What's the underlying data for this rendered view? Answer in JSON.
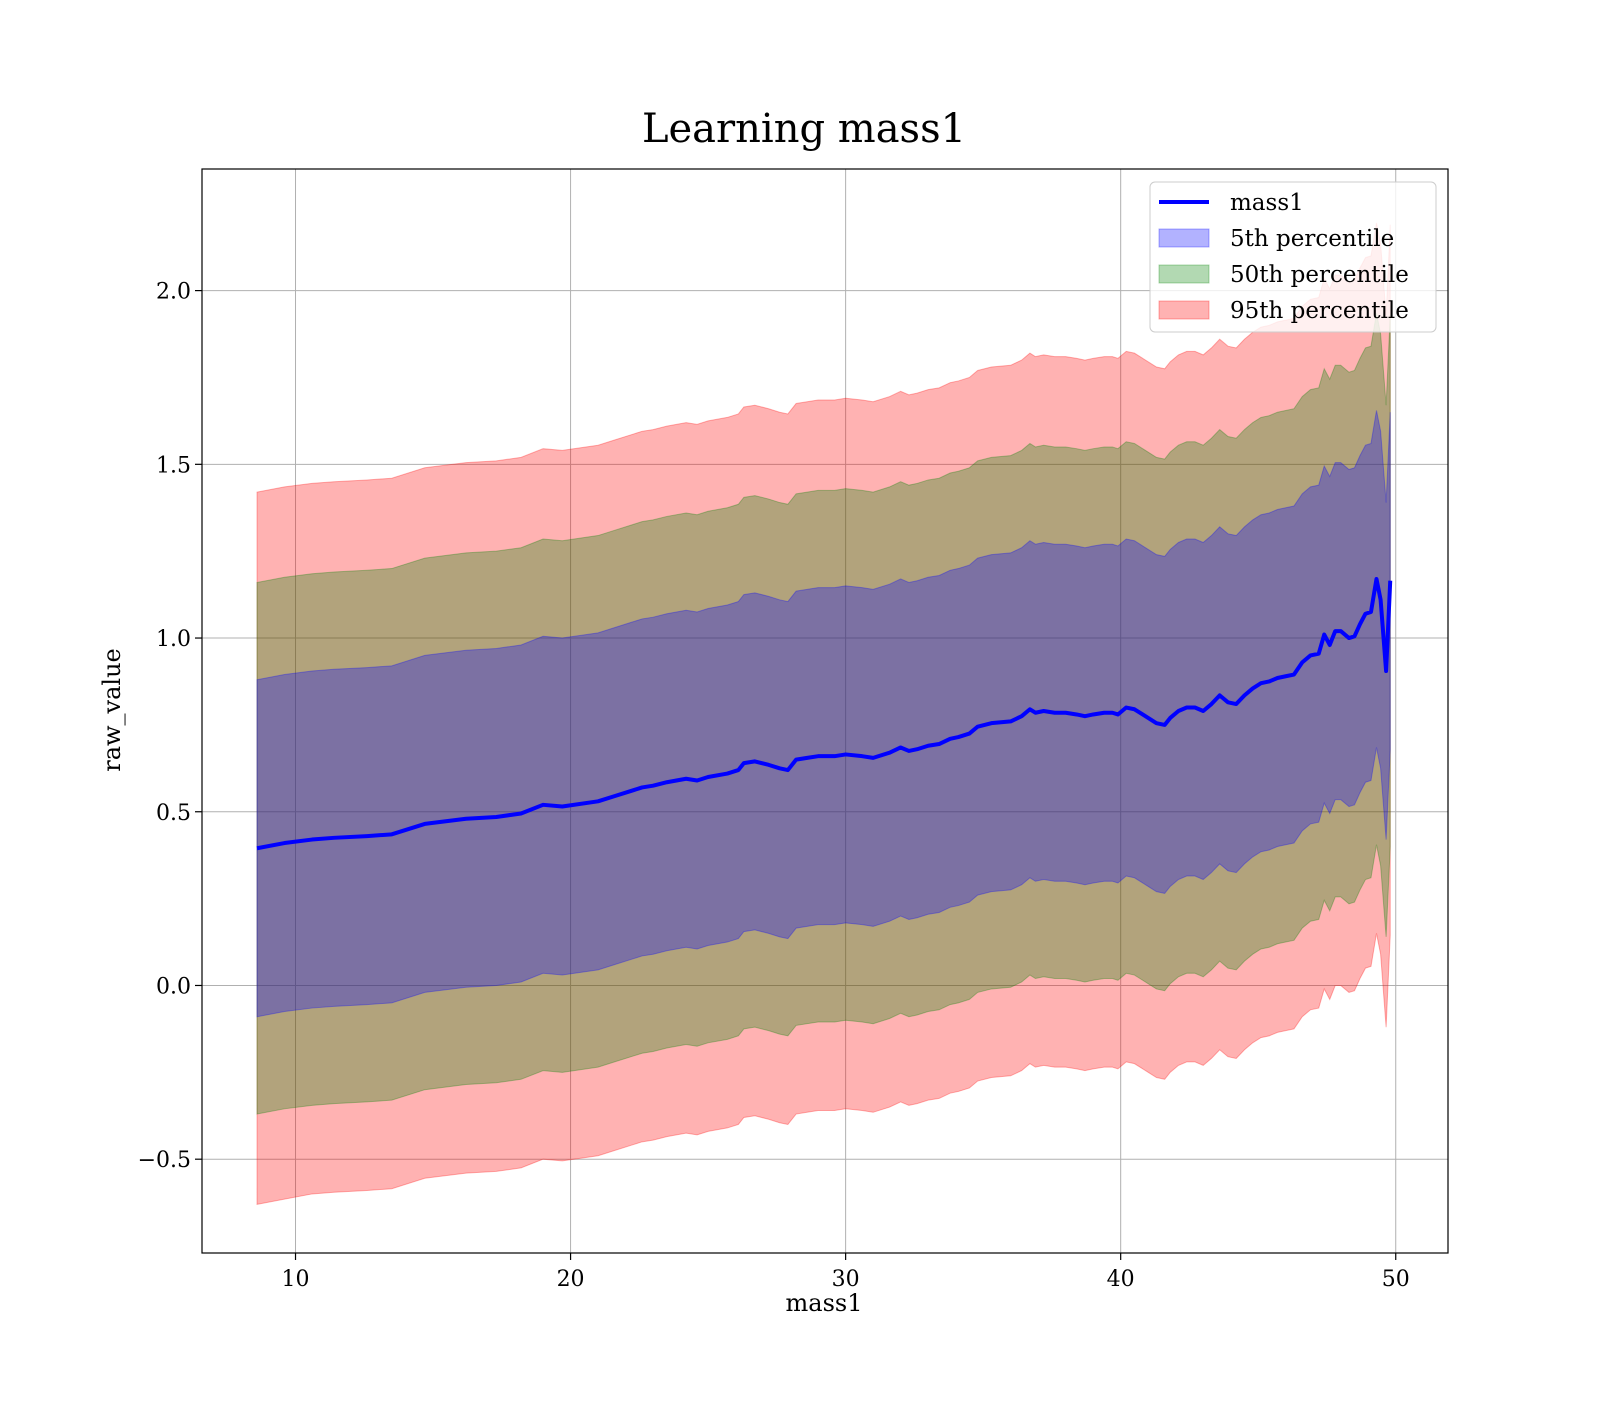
{
  "chart_data": {
    "type": "area",
    "title": "Learning mass1",
    "xlabel": "mass1",
    "ylabel": "raw_value",
    "xlim": [
      6.6,
      51.9
    ],
    "ylim": [
      -0.77,
      2.35
    ],
    "xticks": [
      10,
      20,
      30,
      40,
      50
    ],
    "xtick_labels": [
      "10",
      "20",
      "30",
      "40",
      "50"
    ],
    "yticks": [
      -0.5,
      0.0,
      0.5,
      1.0,
      1.5,
      2.0
    ],
    "ytick_labels": [
      "−0.5",
      "0.0",
      "0.5",
      "1.0",
      "1.5",
      "2.0"
    ],
    "grid": true,
    "legend_position": "top-right",
    "colors": {
      "line": "#0000ff",
      "band_5th": "#0000ff",
      "band_50th": "#008000",
      "band_95th": "#ff0000",
      "grid": "#b0b0b0"
    },
    "legend": [
      {
        "label": "mass1",
        "kind": "line",
        "color": "#0000ff"
      },
      {
        "label": "5th percentile",
        "kind": "patch",
        "color": "#0000ff"
      },
      {
        "label": "50th percentile",
        "kind": "patch",
        "color": "#008000"
      },
      {
        "label": "95th percentile",
        "kind": "patch",
        "color": "#ff0000"
      }
    ],
    "x": [
      8.6,
      9.6,
      10.6,
      11.4,
      12.6,
      13.5,
      14.7,
      16.2,
      17.3,
      18.2,
      19.0,
      19.7,
      21.0,
      21.6,
      22.2,
      22.6,
      23.0,
      23.5,
      24.2,
      24.6,
      25.0,
      25.7,
      26.1,
      26.3,
      26.7,
      27.2,
      27.6,
      27.9,
      28.2,
      28.6,
      29.0,
      29.6,
      30.0,
      30.6,
      31.0,
      31.6,
      32.0,
      32.3,
      32.6,
      33.0,
      33.4,
      33.8,
      34.1,
      34.5,
      34.8,
      35.3,
      36.0,
      36.4,
      36.7,
      36.9,
      37.2,
      37.6,
      38.0,
      38.4,
      38.7,
      39.0,
      39.4,
      39.7,
      39.9,
      40.2,
      40.5,
      40.8,
      41.0,
      41.3,
      41.6,
      41.8,
      42.1,
      42.4,
      42.7,
      43.0,
      43.3,
      43.6,
      43.9,
      44.2,
      44.5,
      44.8,
      45.1,
      45.4,
      45.7,
      46.0,
      46.3,
      46.6,
      46.9,
      47.2,
      47.4,
      47.6,
      47.8,
      48.0,
      48.3,
      48.5,
      48.7,
      48.9,
      49.1,
      49.3,
      49.45,
      49.65,
      49.8
    ],
    "series": [
      {
        "name": "mass1",
        "values": [
          0.395,
          0.41,
          0.42,
          0.425,
          0.43,
          0.435,
          0.465,
          0.48,
          0.485,
          0.495,
          0.52,
          0.515,
          0.53,
          0.545,
          0.56,
          0.57,
          0.575,
          0.585,
          0.595,
          0.59,
          0.6,
          0.61,
          0.62,
          0.64,
          0.645,
          0.635,
          0.625,
          0.62,
          0.65,
          0.655,
          0.66,
          0.66,
          0.665,
          0.66,
          0.655,
          0.67,
          0.685,
          0.675,
          0.68,
          0.69,
          0.695,
          0.71,
          0.715,
          0.725,
          0.745,
          0.755,
          0.76,
          0.775,
          0.795,
          0.785,
          0.79,
          0.785,
          0.785,
          0.78,
          0.775,
          0.78,
          0.785,
          0.785,
          0.78,
          0.8,
          0.795,
          0.78,
          0.77,
          0.755,
          0.75,
          0.77,
          0.79,
          0.8,
          0.8,
          0.79,
          0.81,
          0.835,
          0.815,
          0.81,
          0.835,
          0.855,
          0.87,
          0.875,
          0.885,
          0.89,
          0.895,
          0.93,
          0.95,
          0.955,
          1.01,
          0.98,
          1.02,
          1.02,
          1.0,
          1.005,
          1.04,
          1.07,
          1.075,
          1.17,
          1.11,
          0.905,
          1.165
        ]
      }
    ],
    "bands": [
      {
        "name": "95th percentile",
        "lower": [
          -0.63,
          -0.615,
          -0.6,
          -0.595,
          -0.59,
          -0.585,
          -0.555,
          -0.54,
          -0.535,
          -0.525,
          -0.5,
          -0.505,
          -0.49,
          -0.475,
          -0.46,
          -0.45,
          -0.445,
          -0.435,
          -0.425,
          -0.43,
          -0.42,
          -0.41,
          -0.4,
          -0.38,
          -0.375,
          -0.385,
          -0.395,
          -0.4,
          -0.37,
          -0.365,
          -0.36,
          -0.36,
          -0.355,
          -0.36,
          -0.365,
          -0.35,
          -0.335,
          -0.345,
          -0.34,
          -0.33,
          -0.325,
          -0.31,
          -0.305,
          -0.295,
          -0.275,
          -0.265,
          -0.26,
          -0.245,
          -0.225,
          -0.235,
          -0.23,
          -0.235,
          -0.235,
          -0.24,
          -0.245,
          -0.24,
          -0.235,
          -0.235,
          -0.24,
          -0.22,
          -0.225,
          -0.24,
          -0.25,
          -0.265,
          -0.27,
          -0.25,
          -0.23,
          -0.22,
          -0.22,
          -0.23,
          -0.21,
          -0.185,
          -0.205,
          -0.21,
          -0.185,
          -0.165,
          -0.15,
          -0.145,
          -0.135,
          -0.13,
          -0.125,
          -0.09,
          -0.07,
          -0.065,
          -0.01,
          -0.04,
          0.0,
          0.0,
          -0.02,
          -0.015,
          0.02,
          0.05,
          0.055,
          0.15,
          0.09,
          -0.12,
          0.145
        ],
        "upper": [
          1.42,
          1.435,
          1.445,
          1.45,
          1.455,
          1.46,
          1.49,
          1.505,
          1.51,
          1.52,
          1.545,
          1.54,
          1.555,
          1.57,
          1.585,
          1.595,
          1.6,
          1.61,
          1.62,
          1.615,
          1.625,
          1.635,
          1.645,
          1.665,
          1.67,
          1.66,
          1.65,
          1.645,
          1.675,
          1.68,
          1.685,
          1.685,
          1.69,
          1.685,
          1.68,
          1.695,
          1.71,
          1.7,
          1.705,
          1.715,
          1.72,
          1.735,
          1.74,
          1.75,
          1.77,
          1.78,
          1.785,
          1.8,
          1.82,
          1.81,
          1.815,
          1.81,
          1.81,
          1.805,
          1.8,
          1.805,
          1.81,
          1.81,
          1.805,
          1.825,
          1.82,
          1.805,
          1.795,
          1.78,
          1.775,
          1.795,
          1.815,
          1.825,
          1.825,
          1.815,
          1.835,
          1.86,
          1.84,
          1.835,
          1.86,
          1.88,
          1.895,
          1.9,
          1.91,
          1.915,
          1.92,
          1.955,
          1.975,
          1.98,
          2.035,
          2.005,
          2.045,
          2.045,
          2.025,
          2.03,
          2.065,
          2.095,
          2.1,
          2.195,
          2.135,
          1.93,
          2.19
        ]
      },
      {
        "name": "50th percentile",
        "lower": [
          -0.37,
          -0.355,
          -0.345,
          -0.34,
          -0.335,
          -0.33,
          -0.3,
          -0.285,
          -0.28,
          -0.27,
          -0.245,
          -0.25,
          -0.235,
          -0.22,
          -0.205,
          -0.195,
          -0.19,
          -0.18,
          -0.17,
          -0.175,
          -0.165,
          -0.155,
          -0.145,
          -0.125,
          -0.12,
          -0.13,
          -0.14,
          -0.145,
          -0.115,
          -0.11,
          -0.105,
          -0.105,
          -0.1,
          -0.105,
          -0.11,
          -0.095,
          -0.08,
          -0.09,
          -0.085,
          -0.075,
          -0.07,
          -0.055,
          -0.05,
          -0.04,
          -0.02,
          -0.01,
          -0.005,
          0.01,
          0.03,
          0.02,
          0.025,
          0.02,
          0.02,
          0.015,
          0.01,
          0.015,
          0.02,
          0.02,
          0.015,
          0.035,
          0.03,
          0.015,
          0.005,
          -0.01,
          -0.015,
          0.005,
          0.025,
          0.035,
          0.035,
          0.025,
          0.045,
          0.07,
          0.05,
          0.045,
          0.07,
          0.09,
          0.105,
          0.11,
          0.12,
          0.125,
          0.13,
          0.165,
          0.185,
          0.19,
          0.245,
          0.215,
          0.255,
          0.255,
          0.235,
          0.24,
          0.275,
          0.305,
          0.31,
          0.405,
          0.345,
          0.14,
          0.4
        ],
        "upper": [
          1.16,
          1.175,
          1.185,
          1.19,
          1.195,
          1.2,
          1.23,
          1.245,
          1.25,
          1.26,
          1.285,
          1.28,
          1.295,
          1.31,
          1.325,
          1.335,
          1.34,
          1.35,
          1.36,
          1.355,
          1.365,
          1.375,
          1.385,
          1.405,
          1.41,
          1.4,
          1.39,
          1.385,
          1.415,
          1.42,
          1.425,
          1.425,
          1.43,
          1.425,
          1.42,
          1.435,
          1.45,
          1.44,
          1.445,
          1.455,
          1.46,
          1.475,
          1.48,
          1.49,
          1.51,
          1.52,
          1.525,
          1.54,
          1.56,
          1.55,
          1.555,
          1.55,
          1.55,
          1.545,
          1.54,
          1.545,
          1.55,
          1.55,
          1.545,
          1.565,
          1.56,
          1.545,
          1.535,
          1.52,
          1.515,
          1.535,
          1.555,
          1.565,
          1.565,
          1.555,
          1.575,
          1.6,
          1.58,
          1.575,
          1.6,
          1.62,
          1.635,
          1.64,
          1.65,
          1.655,
          1.66,
          1.695,
          1.715,
          1.72,
          1.775,
          1.745,
          1.785,
          1.785,
          1.765,
          1.77,
          1.805,
          1.835,
          1.84,
          1.935,
          1.875,
          1.67,
          1.93
        ]
      },
      {
        "name": "5th percentile",
        "lower": [
          -0.09,
          -0.075,
          -0.065,
          -0.06,
          -0.055,
          -0.05,
          -0.02,
          -0.005,
          0.0,
          0.01,
          0.035,
          0.03,
          0.045,
          0.06,
          0.075,
          0.085,
          0.09,
          0.1,
          0.11,
          0.105,
          0.115,
          0.125,
          0.135,
          0.155,
          0.16,
          0.15,
          0.14,
          0.135,
          0.165,
          0.17,
          0.175,
          0.175,
          0.18,
          0.175,
          0.17,
          0.185,
          0.2,
          0.19,
          0.195,
          0.205,
          0.21,
          0.225,
          0.23,
          0.24,
          0.26,
          0.27,
          0.275,
          0.29,
          0.31,
          0.3,
          0.305,
          0.3,
          0.3,
          0.295,
          0.29,
          0.295,
          0.3,
          0.3,
          0.295,
          0.315,
          0.31,
          0.295,
          0.285,
          0.27,
          0.265,
          0.285,
          0.305,
          0.315,
          0.315,
          0.305,
          0.325,
          0.35,
          0.33,
          0.325,
          0.35,
          0.37,
          0.385,
          0.39,
          0.4,
          0.405,
          0.41,
          0.445,
          0.465,
          0.47,
          0.525,
          0.495,
          0.535,
          0.535,
          0.515,
          0.52,
          0.555,
          0.585,
          0.59,
          0.685,
          0.625,
          0.42,
          0.68
        ],
        "upper": [
          0.88,
          0.895,
          0.905,
          0.91,
          0.915,
          0.92,
          0.95,
          0.965,
          0.97,
          0.98,
          1.005,
          1.0,
          1.015,
          1.03,
          1.045,
          1.055,
          1.06,
          1.07,
          1.08,
          1.075,
          1.085,
          1.095,
          1.105,
          1.125,
          1.13,
          1.12,
          1.11,
          1.105,
          1.135,
          1.14,
          1.145,
          1.145,
          1.15,
          1.145,
          1.14,
          1.155,
          1.17,
          1.16,
          1.165,
          1.175,
          1.18,
          1.195,
          1.2,
          1.21,
          1.23,
          1.24,
          1.245,
          1.26,
          1.28,
          1.27,
          1.275,
          1.27,
          1.27,
          1.265,
          1.26,
          1.265,
          1.27,
          1.27,
          1.265,
          1.285,
          1.28,
          1.265,
          1.255,
          1.24,
          1.235,
          1.255,
          1.275,
          1.285,
          1.285,
          1.275,
          1.295,
          1.32,
          1.3,
          1.295,
          1.32,
          1.34,
          1.355,
          1.36,
          1.37,
          1.375,
          1.38,
          1.415,
          1.435,
          1.44,
          1.495,
          1.465,
          1.505,
          1.505,
          1.485,
          1.49,
          1.525,
          1.555,
          1.56,
          1.655,
          1.595,
          1.39,
          1.65
        ]
      }
    ]
  }
}
